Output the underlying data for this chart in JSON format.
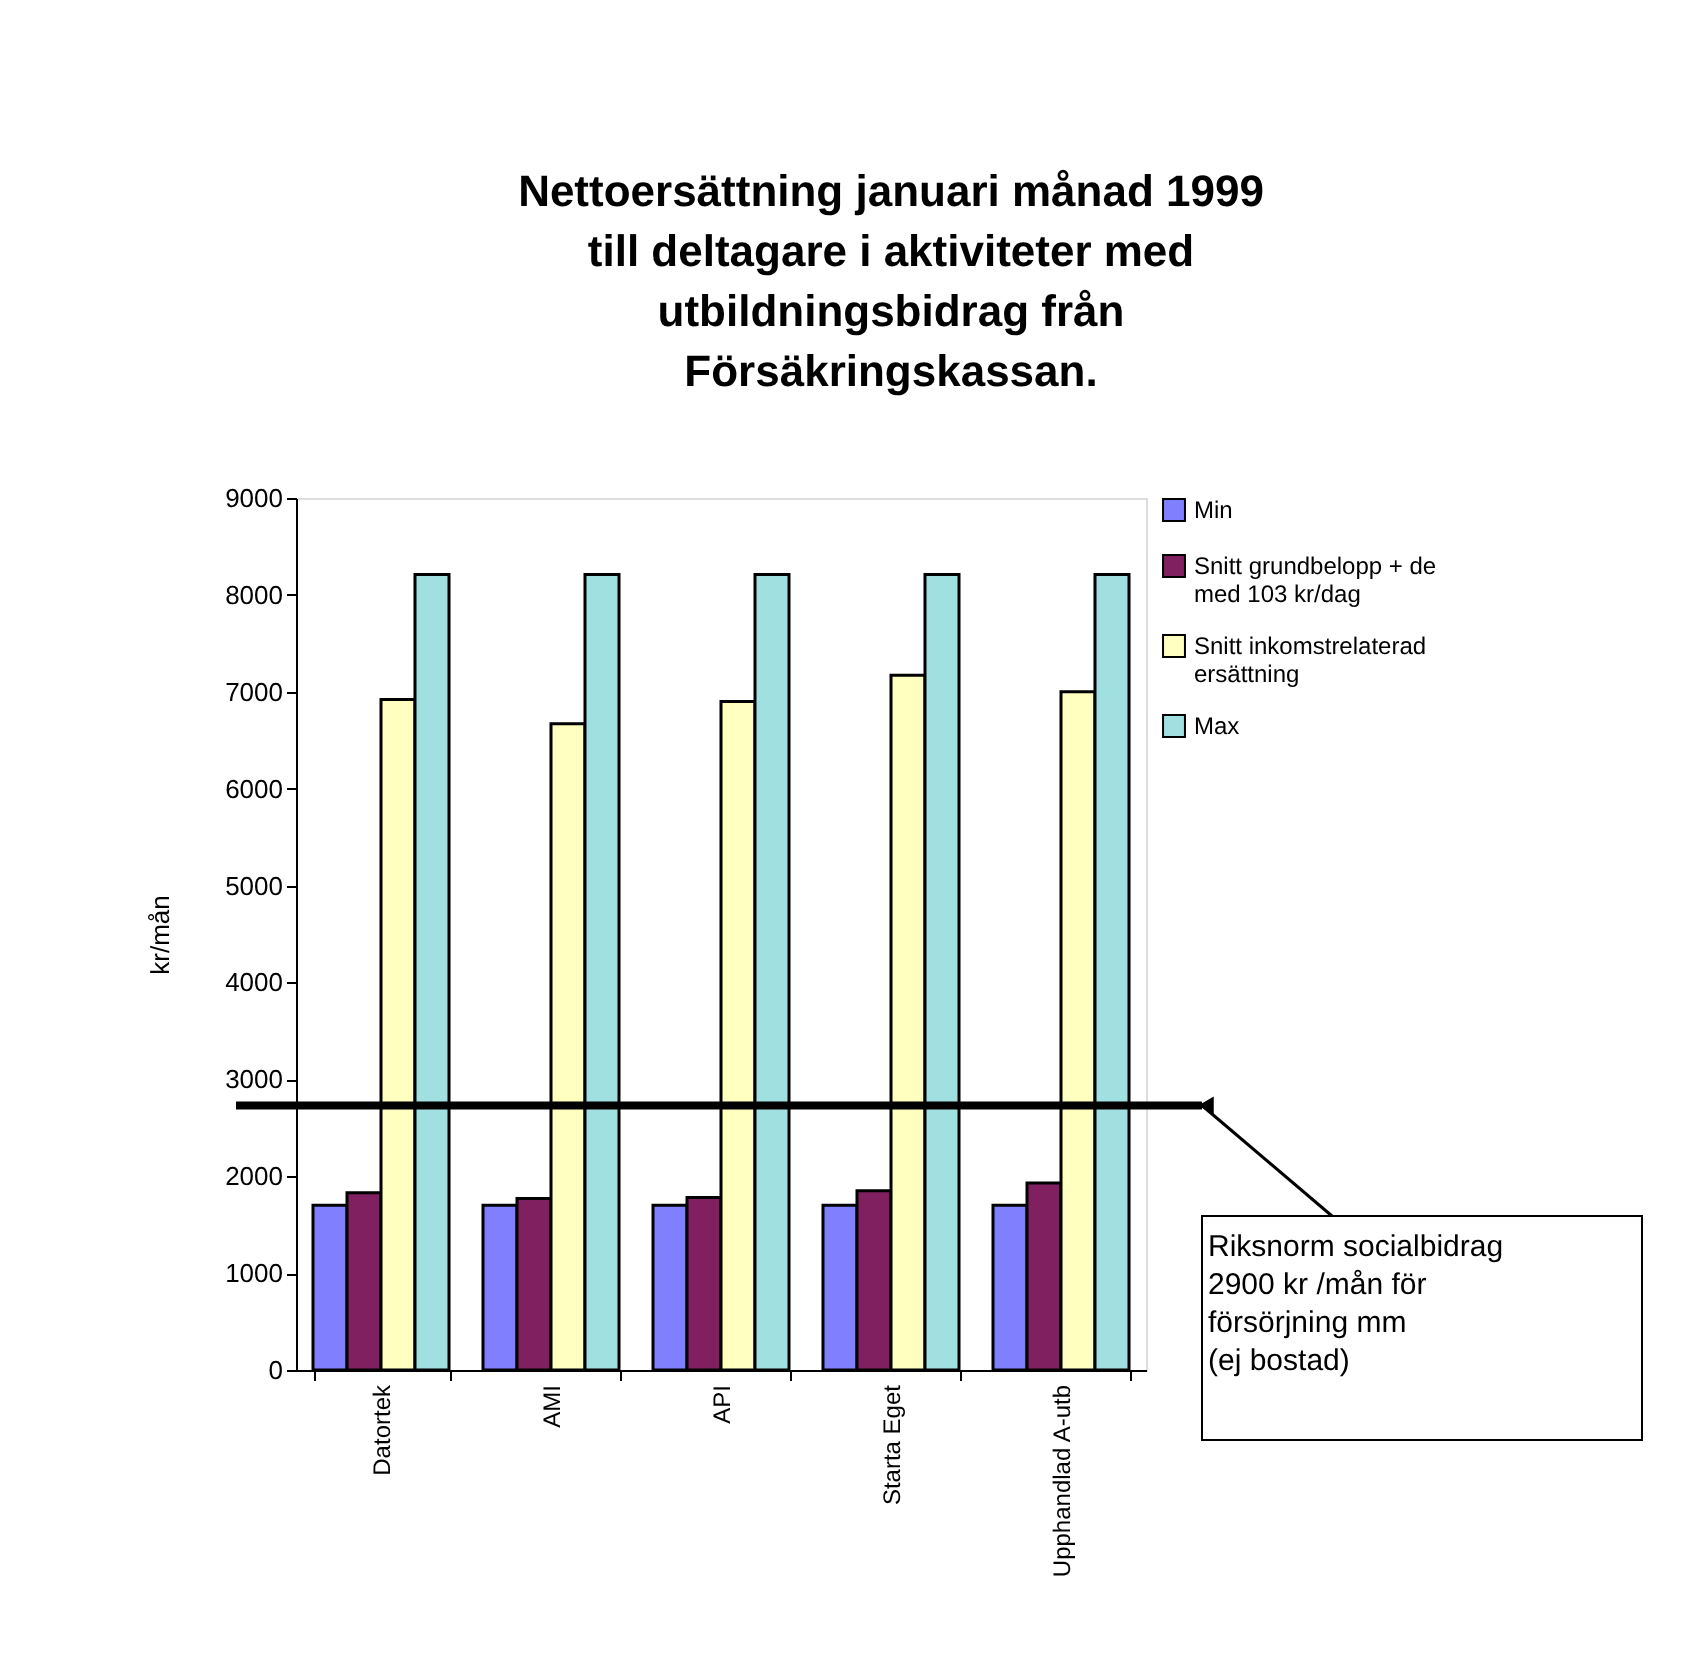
{
  "chart_data": {
    "type": "bar",
    "title": [
      "Nettoersättning januari månad 1999",
      "till deltagare i aktiviteter med",
      "utbildningsbidrag från",
      "Försäkringskassan."
    ],
    "ylabel": "kr/mån",
    "categories": [
      "Datortek",
      "AMI",
      "API",
      "Starta Eget",
      "Upphandlad A-utb"
    ],
    "series": [
      {
        "name": "Min",
        "color": "#8080ff",
        "values": [
          1700,
          1700,
          1700,
          1700,
          1700
        ]
      },
      {
        "name": "Snitt grundbelopp + de med 103 kr/dag",
        "color": "#802060",
        "values": [
          1830,
          1770,
          1780,
          1850,
          1930
        ]
      },
      {
        "name": "Snitt inkomstrelaterad ersättning",
        "color": "#ffffc0",
        "values": [
          6920,
          6670,
          6900,
          7170,
          7000
        ]
      },
      {
        "name": "Max",
        "color": "#a0e0e0",
        "values": [
          8210,
          8210,
          8210,
          8210,
          8210
        ]
      }
    ],
    "ylim": [
      0,
      9000
    ],
    "yticks": [
      0,
      1000,
      2000,
      3000,
      4000,
      5000,
      6000,
      7000,
      8000,
      9000
    ],
    "grid": false,
    "legend": "right",
    "ref_lines": [
      {
        "axis": "y",
        "value": 2730,
        "color": "#000000",
        "label": " Riksnorm socialbidrag\n2900 kr /mån för\n försörjning mm\n (ej bostad)"
      }
    ]
  }
}
